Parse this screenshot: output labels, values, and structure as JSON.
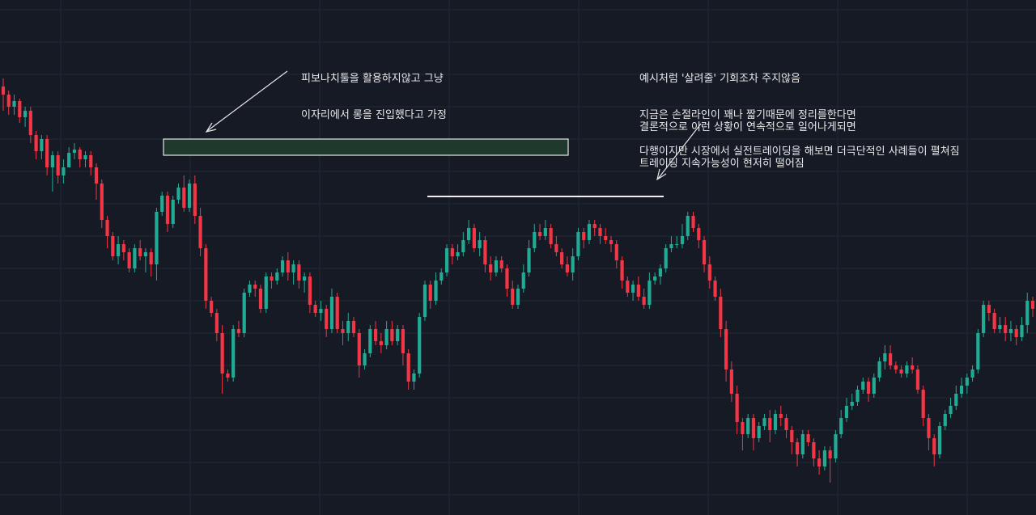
{
  "annotations": {
    "long_entry": {
      "lines": [
        "피보나치툴을 활용하지않고 그냥",
        "이자리에서 롱을 진입했다고 가정"
      ]
    },
    "no_chance": {
      "lines": [
        "예시처럼 '살려줄' 기회조차 주지않음",
        "지금은 손절라인이 꽤나 짧기때문에 정리를한다면",
        "다행이지만 시장에서 실전트레이딩을 해보면 더극단적인 사례들이 펼쳐짐"
      ]
    },
    "conclusion": {
      "lines": [
        "결론적으로 이런 상황이 연속적으로 일어나게되면",
        "트레이딩 지속가능성이 현저히 떨어짐"
      ]
    }
  },
  "colors": {
    "background": "#161a25",
    "grid": "#232836",
    "up": "#22ab94",
    "down": "#f23645",
    "entry_zone_fill": "#1f3a2c",
    "entry_zone_stroke": "#e6e6e6",
    "resistance_line": "#f0f0f0",
    "arrow": "#e6e6e6"
  },
  "chart_data": {
    "type": "candlestick",
    "title": "",
    "xlabel": "",
    "ylabel": "",
    "ylim": [
      0,
      637
    ],
    "y_note": "price axis not printed; values expressed on an unlabeled relative scale where larger = higher price",
    "grid": true,
    "candles": [
      [
        530,
        520,
        540,
        500
      ],
      [
        520,
        505,
        525,
        495
      ],
      [
        505,
        512,
        520,
        495
      ],
      [
        512,
        492,
        515,
        485
      ],
      [
        492,
        500,
        505,
        480
      ],
      [
        500,
        470,
        505,
        460
      ],
      [
        470,
        450,
        475,
        440
      ],
      [
        450,
        465,
        470,
        440
      ],
      [
        465,
        430,
        470,
        420
      ],
      [
        430,
        445,
        450,
        400
      ],
      [
        445,
        420,
        450,
        410
      ],
      [
        420,
        430,
        440,
        410
      ],
      [
        430,
        448,
        455,
        430
      ],
      [
        448,
        452,
        460,
        440
      ],
      [
        452,
        440,
        455,
        430
      ],
      [
        440,
        445,
        450,
        430
      ],
      [
        445,
        430,
        450,
        420
      ],
      [
        430,
        410,
        435,
        390
      ],
      [
        410,
        365,
        415,
        355
      ],
      [
        365,
        345,
        370,
        330
      ],
      [
        345,
        320,
        350,
        315
      ],
      [
        320,
        335,
        345,
        310
      ],
      [
        335,
        325,
        340,
        315
      ],
      [
        325,
        305,
        330,
        300
      ],
      [
        305,
        330,
        335,
        300
      ],
      [
        330,
        320,
        340,
        315
      ],
      [
        320,
        325,
        330,
        300
      ],
      [
        325,
        310,
        330,
        295
      ],
      [
        310,
        375,
        380,
        290
      ],
      [
        375,
        395,
        400,
        370
      ],
      [
        395,
        360,
        400,
        350
      ],
      [
        360,
        390,
        395,
        355
      ],
      [
        390,
        405,
        410,
        385
      ],
      [
        405,
        380,
        420,
        375
      ],
      [
        380,
        410,
        415,
        375
      ],
      [
        410,
        370,
        420,
        360
      ],
      [
        370,
        330,
        380,
        320
      ],
      [
        330,
        265,
        335,
        255
      ],
      [
        265,
        250,
        270,
        245
      ],
      [
        250,
        225,
        255,
        215
      ],
      [
        225,
        175,
        235,
        150
      ],
      [
        175,
        170,
        180,
        165
      ],
      [
        170,
        230,
        235,
        165
      ],
      [
        230,
        225,
        240,
        220
      ],
      [
        225,
        275,
        280,
        220
      ],
      [
        275,
        285,
        290,
        270
      ],
      [
        285,
        280,
        290,
        270
      ],
      [
        280,
        255,
        285,
        250
      ],
      [
        255,
        295,
        300,
        250
      ],
      [
        295,
        290,
        300,
        280
      ],
      [
        290,
        300,
        305,
        285
      ],
      [
        300,
        315,
        320,
        295
      ],
      [
        315,
        300,
        325,
        290
      ],
      [
        300,
        310,
        315,
        285
      ],
      [
        310,
        290,
        315,
        280
      ],
      [
        290,
        295,
        300,
        275
      ],
      [
        295,
        260,
        300,
        250
      ],
      [
        260,
        250,
        265,
        245
      ],
      [
        250,
        255,
        265,
        240
      ],
      [
        255,
        230,
        260,
        220
      ],
      [
        230,
        270,
        280,
        225
      ],
      [
        270,
        230,
        275,
        225
      ],
      [
        230,
        225,
        240,
        210
      ],
      [
        225,
        240,
        250,
        215
      ],
      [
        240,
        225,
        245,
        220
      ],
      [
        225,
        185,
        230,
        170
      ],
      [
        185,
        200,
        205,
        180
      ],
      [
        200,
        230,
        235,
        195
      ],
      [
        230,
        215,
        240,
        210
      ],
      [
        215,
        210,
        225,
        200
      ],
      [
        210,
        230,
        240,
        205
      ],
      [
        230,
        215,
        240,
        210
      ],
      [
        215,
        230,
        235,
        210
      ],
      [
        230,
        200,
        235,
        185
      ],
      [
        200,
        165,
        205,
        155
      ],
      [
        165,
        175,
        180,
        155
      ],
      [
        175,
        245,
        250,
        170
      ],
      [
        245,
        285,
        290,
        240
      ],
      [
        285,
        265,
        290,
        255
      ],
      [
        265,
        290,
        300,
        260
      ],
      [
        290,
        300,
        305,
        285
      ],
      [
        300,
        330,
        335,
        295
      ],
      [
        330,
        320,
        335,
        310
      ],
      [
        320,
        325,
        335,
        315
      ],
      [
        325,
        340,
        350,
        320
      ],
      [
        340,
        355,
        365,
        335
      ],
      [
        355,
        330,
        360,
        325
      ],
      [
        330,
        340,
        350,
        320
      ],
      [
        340,
        310,
        345,
        300
      ],
      [
        310,
        300,
        320,
        290
      ],
      [
        300,
        315,
        320,
        295
      ],
      [
        315,
        305,
        320,
        300
      ],
      [
        305,
        280,
        310,
        270
      ],
      [
        280,
        260,
        290,
        255
      ],
      [
        260,
        280,
        285,
        255
      ],
      [
        280,
        300,
        310,
        275
      ],
      [
        300,
        330,
        340,
        295
      ],
      [
        330,
        350,
        360,
        325
      ],
      [
        350,
        345,
        360,
        340
      ],
      [
        345,
        355,
        365,
        340
      ],
      [
        355,
        335,
        360,
        330
      ],
      [
        335,
        325,
        345,
        320
      ],
      [
        325,
        310,
        330,
        305
      ],
      [
        310,
        300,
        320,
        295
      ],
      [
        300,
        320,
        330,
        290
      ],
      [
        320,
        350,
        355,
        315
      ],
      [
        350,
        340,
        355,
        330
      ],
      [
        340,
        360,
        365,
        335
      ],
      [
        360,
        355,
        365,
        345
      ],
      [
        355,
        345,
        360,
        335
      ],
      [
        345,
        340,
        355,
        335
      ],
      [
        340,
        335,
        345,
        325
      ],
      [
        335,
        315,
        340,
        305
      ],
      [
        315,
        290,
        320,
        280
      ],
      [
        290,
        275,
        295,
        270
      ],
      [
        275,
        285,
        290,
        265
      ],
      [
        285,
        270,
        295,
        265
      ],
      [
        270,
        260,
        280,
        255
      ],
      [
        260,
        290,
        300,
        255
      ],
      [
        290,
        295,
        300,
        285
      ],
      [
        295,
        305,
        310,
        285
      ],
      [
        305,
        330,
        335,
        300
      ],
      [
        330,
        335,
        345,
        325
      ],
      [
        335,
        335,
        345,
        330
      ],
      [
        335,
        345,
        360,
        330
      ],
      [
        345,
        370,
        375,
        340
      ],
      [
        370,
        355,
        375,
        350
      ],
      [
        355,
        340,
        360,
        330
      ],
      [
        340,
        310,
        345,
        300
      ],
      [
        310,
        290,
        320,
        280
      ],
      [
        290,
        270,
        295,
        265
      ],
      [
        270,
        230,
        280,
        220
      ],
      [
        230,
        180,
        240,
        165
      ],
      [
        180,
        150,
        190,
        140
      ],
      [
        150,
        115,
        160,
        100
      ],
      [
        115,
        100,
        120,
        80
      ],
      [
        100,
        120,
        125,
        95
      ],
      [
        120,
        95,
        125,
        80
      ],
      [
        95,
        110,
        115,
        90
      ],
      [
        110,
        120,
        125,
        105
      ],
      [
        120,
        105,
        130,
        90
      ],
      [
        105,
        125,
        130,
        100
      ],
      [
        125,
        120,
        135,
        110
      ],
      [
        120,
        105,
        125,
        95
      ],
      [
        105,
        90,
        110,
        75
      ],
      [
        90,
        75,
        95,
        60
      ],
      [
        75,
        100,
        105,
        70
      ],
      [
        100,
        90,
        105,
        85
      ],
      [
        90,
        70,
        95,
        60
      ],
      [
        70,
        60,
        80,
        50
      ],
      [
        60,
        80,
        85,
        55
      ],
      [
        80,
        70,
        85,
        40
      ],
      [
        70,
        100,
        105,
        65
      ],
      [
        100,
        120,
        130,
        95
      ],
      [
        120,
        135,
        145,
        115
      ],
      [
        135,
        140,
        150,
        130
      ],
      [
        140,
        155,
        160,
        135
      ],
      [
        155,
        165,
        170,
        150
      ],
      [
        165,
        150,
        170,
        140
      ],
      [
        150,
        170,
        175,
        145
      ],
      [
        170,
        190,
        195,
        165
      ],
      [
        190,
        200,
        210,
        180
      ],
      [
        200,
        185,
        210,
        180
      ],
      [
        185,
        180,
        190,
        175
      ],
      [
        180,
        175,
        185,
        170
      ],
      [
        175,
        185,
        190,
        170
      ],
      [
        185,
        180,
        195,
        175
      ],
      [
        180,
        155,
        185,
        150
      ],
      [
        155,
        120,
        160,
        110
      ],
      [
        120,
        95,
        125,
        80
      ],
      [
        95,
        75,
        100,
        60
      ],
      [
        75,
        110,
        115,
        70
      ],
      [
        110,
        125,
        130,
        105
      ],
      [
        125,
        135,
        145,
        120
      ],
      [
        135,
        150,
        160,
        130
      ],
      [
        150,
        160,
        170,
        145
      ],
      [
        160,
        170,
        175,
        150
      ],
      [
        170,
        180,
        185,
        165
      ],
      [
        180,
        225,
        230,
        175
      ],
      [
        225,
        260,
        265,
        220
      ],
      [
        260,
        250,
        265,
        240
      ],
      [
        250,
        230,
        255,
        225
      ],
      [
        230,
        235,
        245,
        225
      ],
      [
        235,
        225,
        245,
        215
      ],
      [
        225,
        230,
        240,
        215
      ],
      [
        230,
        220,
        235,
        210
      ],
      [
        220,
        235,
        245,
        215
      ],
      [
        235,
        265,
        275,
        225
      ],
      [
        265,
        255,
        270,
        245
      ]
    ],
    "annotations_zone": {
      "type": "rectangle",
      "label": "long entry zone"
    },
    "resistance": {
      "type": "horizontal-line"
    }
  }
}
